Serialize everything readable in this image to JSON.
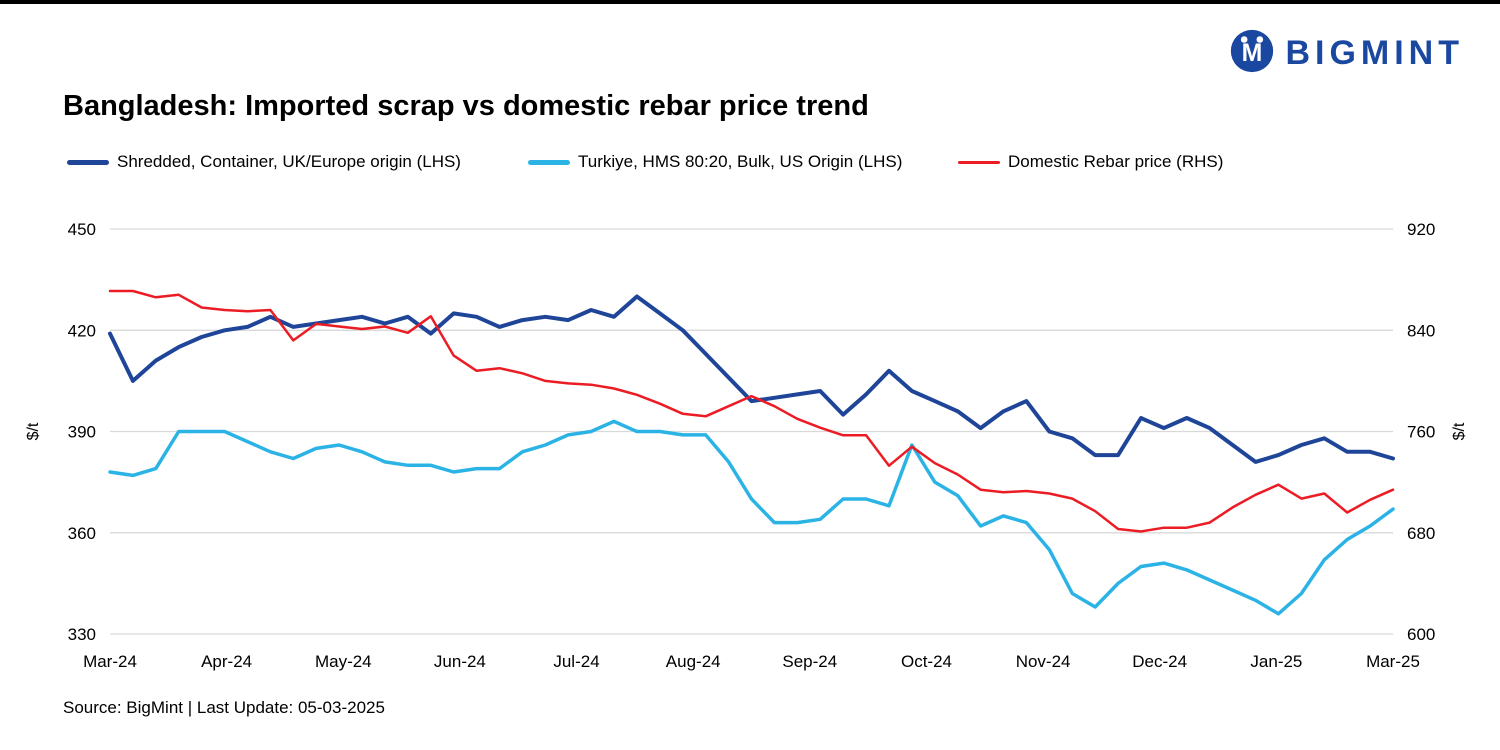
{
  "logo": {
    "text": "BIGMINT"
  },
  "title": "Bangladesh: Imported scrap vs domestic rebar price trend",
  "legend": [
    {
      "label": "Shredded, Container, UK/Europe origin (LHS)",
      "color": "#1f4599"
    },
    {
      "label": "Turkiye, HMS 80:20, Bulk, US Origin (LHS)",
      "color": "#2bb3e6"
    },
    {
      "label": "Domestic Rebar price (RHS)",
      "color": "#ec1c24"
    }
  ],
  "source": "Source: BigMint | Last Update: 05-03-2025",
  "chart_data": {
    "type": "line",
    "title": "Bangladesh: Imported scrap vs domestic rebar price trend",
    "grid": true,
    "grid_color": "#d9d9d9",
    "legend_position": "top",
    "x_labels": [
      "Mar-24",
      "Apr-24",
      "May-24",
      "Jun-24",
      "Jul-24",
      "Aug-24",
      "Sep-24",
      "Oct-24",
      "Nov-24",
      "Dec-24",
      "Jan-25",
      "Mar-25"
    ],
    "left_axis": {
      "label": "$/t",
      "min": 330,
      "max": 450,
      "ticks": [
        330,
        360,
        390,
        420,
        450
      ]
    },
    "right_axis": {
      "label": "$/t",
      "min": 600,
      "max": 920,
      "ticks": [
        600,
        680,
        760,
        840,
        920
      ]
    },
    "series": [
      {
        "name": "Shredded, Container, UK/Europe origin (LHS)",
        "axis": "left",
        "color": "#1f4599",
        "width": 4,
        "values": [
          419,
          405,
          411,
          415,
          418,
          420,
          421,
          424,
          421,
          422,
          423,
          424,
          422,
          424,
          419,
          425,
          424,
          421,
          423,
          424,
          423,
          426,
          424,
          430,
          425,
          420,
          413,
          406,
          399,
          400,
          401,
          402,
          395,
          401,
          408,
          402,
          399,
          396,
          391,
          396,
          399,
          390,
          388,
          383,
          383,
          394,
          391,
          394,
          391,
          386,
          381,
          383,
          386,
          388,
          384,
          384,
          382
        ]
      },
      {
        "name": "Turkiye, HMS 80:20, Bulk, US Origin (LHS)",
        "axis": "left",
        "color": "#2bb3e6",
        "width": 3.5,
        "values": [
          378,
          377,
          379,
          390,
          390,
          390,
          387,
          384,
          382,
          385,
          386,
          384,
          381,
          380,
          380,
          378,
          379,
          379,
          384,
          386,
          389,
          390,
          393,
          390,
          390,
          389,
          389,
          381,
          370,
          363,
          363,
          364,
          370,
          370,
          368,
          386,
          375,
          371,
          362,
          365,
          363,
          355,
          342,
          338,
          345,
          350,
          351,
          349,
          346,
          343,
          340,
          336,
          342,
          352,
          358,
          362,
          367
        ]
      },
      {
        "name": "Domestic Rebar price (RHS)",
        "axis": "right",
        "color": "#ec1c24",
        "width": 2.5,
        "values": [
          871,
          871,
          866,
          868,
          858,
          856,
          855,
          856,
          832,
          845,
          843,
          841,
          843,
          838,
          851,
          820,
          808,
          810,
          806,
          800,
          798,
          797,
          794,
          789,
          782,
          774,
          772,
          780,
          788,
          780,
          770,
          763,
          757,
          757,
          733,
          748,
          735,
          726,
          714,
          712,
          713,
          711,
          707,
          697,
          683,
          681,
          684,
          684,
          688,
          700,
          710,
          718,
          707,
          711,
          696,
          706,
          714
        ]
      }
    ]
  }
}
